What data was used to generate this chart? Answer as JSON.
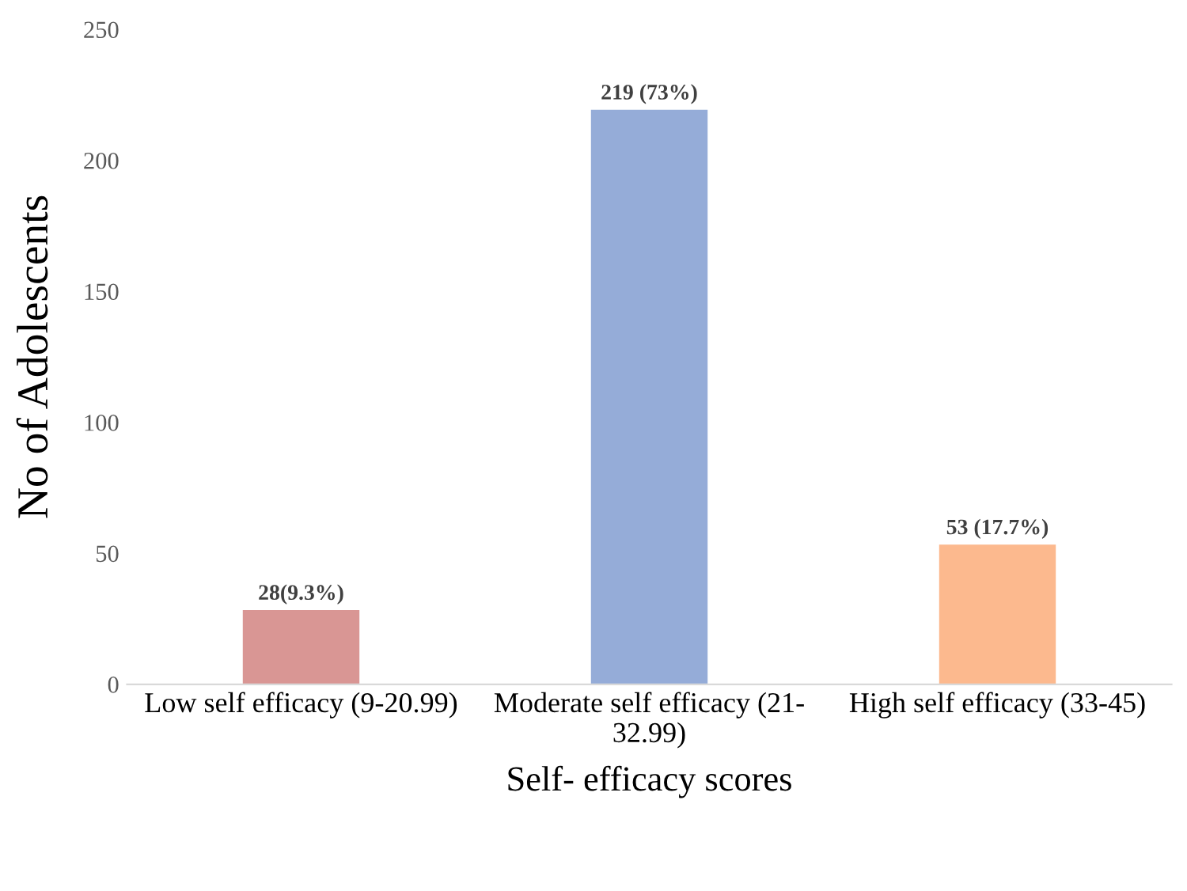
{
  "chart_data": {
    "type": "bar",
    "xlabel": "Self- efficacy scores",
    "ylabel": "No of Adolescents",
    "categories": [
      "Low self efficacy (9-20.99)",
      "Moderate self efficacy (21-\n32.99)",
      "High self efficacy (33-45)"
    ],
    "values": [
      28,
      219,
      53
    ],
    "colors": [
      "#d99694",
      "#95acd8",
      "#fcb98e"
    ],
    "value_labels": [
      "28(9.3%)",
      "219 (73%)",
      "53 (17.7%)"
    ],
    "ylim": [
      0,
      250
    ],
    "yticks": [
      0,
      50,
      100,
      150,
      200,
      250
    ],
    "grid": false
  }
}
